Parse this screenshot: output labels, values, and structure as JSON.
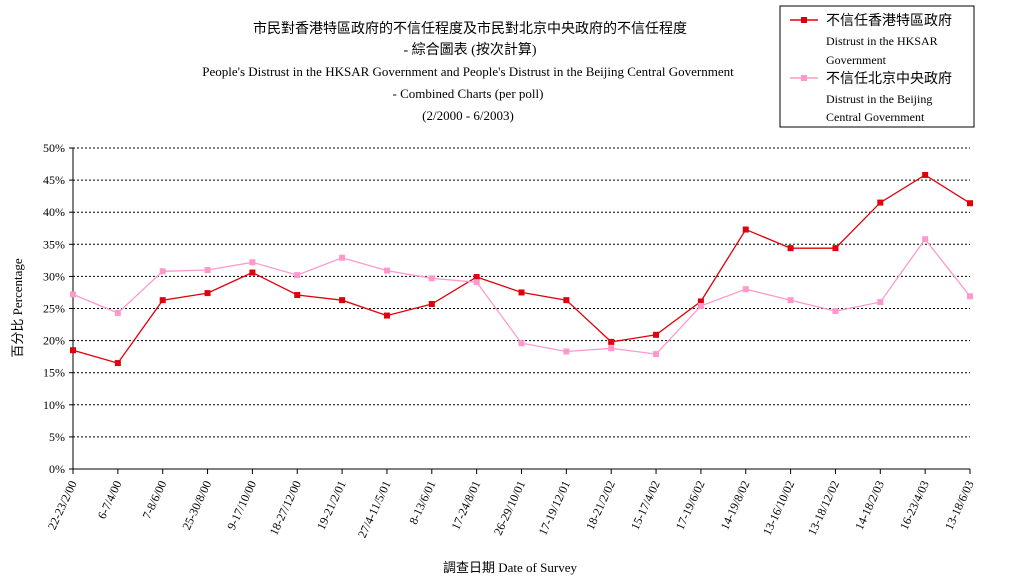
{
  "chart_data": {
    "type": "line",
    "title_lines": [
      "市民對香港特區政府的不信任程度及市民對北京中央政府的不信任程度",
      "- 綜合圖表 (按次計算)",
      "People's Distrust in the HKSAR Government and People's Distrust in the Beijing Central Government",
      "- Combined Charts (per poll)",
      "(2/2000 - 6/2003)"
    ],
    "xlabel": "調查日期 Date of Survey",
    "ylabel": "百分比 Percentage",
    "ylim": [
      0,
      50
    ],
    "yticks": [
      "0%",
      "5%",
      "10%",
      "15%",
      "20%",
      "25%",
      "30%",
      "35%",
      "40%",
      "45%",
      "50%"
    ],
    "grid": true,
    "legend_position": "top-right",
    "categories": [
      "22-23/2/00",
      "6-7/4/00",
      "7-8/6/00",
      "25-30/8/00",
      "9-17/10/00",
      "18-27/12/00",
      "19-21/2/01",
      "27/4-11/5/01",
      "8-13/6/01",
      "17-24/8/01",
      "26-29/10/01",
      "17-19/12/01",
      "18-21/2/02",
      "15-17/4/02",
      "17-19/6/02",
      "14-19/8/02",
      "13-16/10/02",
      "13-18/12/02",
      "14-18/2/03",
      "16-23/4/03",
      "13-18/6/03"
    ],
    "series": [
      {
        "name_lines": [
          "不信任香港特區政府",
          "Distrust in the HKSAR",
          "Government"
        ],
        "color": "#e0000b",
        "values": [
          18.5,
          16.5,
          26.3,
          27.4,
          30.6,
          27.1,
          26.3,
          23.9,
          25.7,
          29.9,
          27.5,
          26.3,
          19.8,
          20.9,
          26.1,
          37.3,
          34.4,
          34.4,
          41.5,
          45.8,
          41.4
        ]
      },
      {
        "name_lines": [
          "不信任北京中央政府",
          "Distrust in the Beijing",
          "Central Government"
        ],
        "color": "#ff99cc",
        "values": [
          27.2,
          24.3,
          30.8,
          31.0,
          32.2,
          30.2,
          32.9,
          30.9,
          29.7,
          29.1,
          19.6,
          18.3,
          18.8,
          17.9,
          25.4,
          28.0,
          26.3,
          24.6,
          26.0,
          35.8,
          26.9
        ]
      }
    ]
  }
}
